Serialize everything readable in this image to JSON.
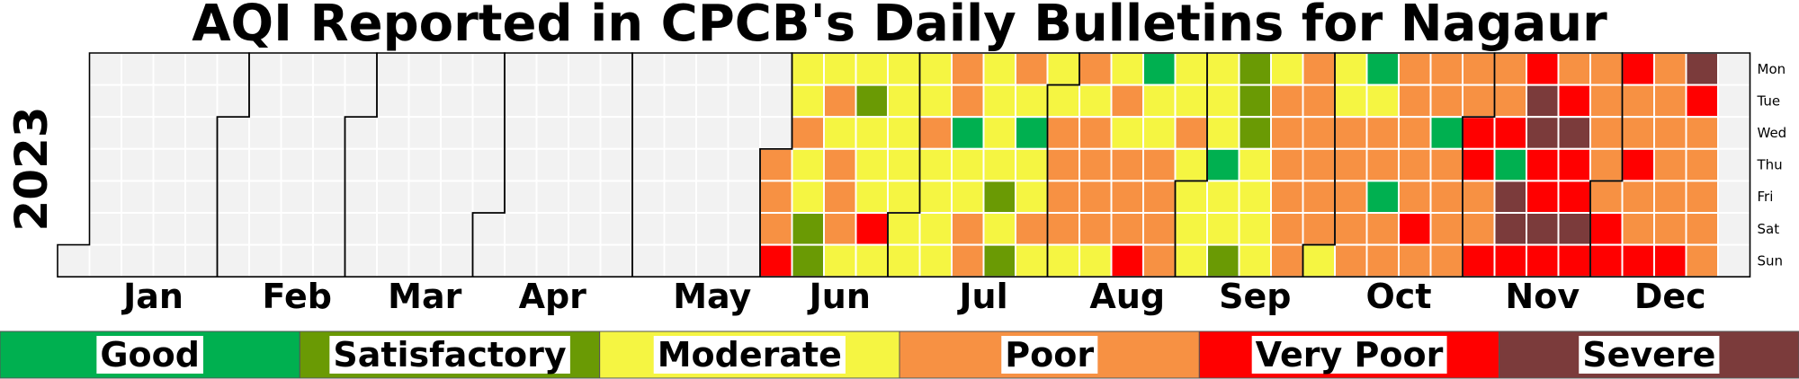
{
  "chart_data": {
    "type": "heatmap",
    "title": "AQI Reported in CPCB's Daily Bulletins for Nagaur",
    "year": "2023",
    "months": [
      "Jan",
      "Feb",
      "Mar",
      "Apr",
      "May",
      "Jun",
      "Jul",
      "Aug",
      "Sep",
      "Oct",
      "Nov",
      "Dec"
    ],
    "weekdays": [
      "Mon",
      "Tue",
      "Wed",
      "Thu",
      "Fri",
      "Sat",
      "Sun"
    ],
    "colors": {
      "none": "#f2f2f2",
      "Good": "#00b050",
      "Satisfactory": "#6a9a04",
      "Moderate": "#f5f542",
      "Poor": "#f79143",
      "Very Poor": "#ff0000",
      "Severe": "#7b3b3b"
    },
    "categories": [
      "Good",
      "Satisfactory",
      "Moderate",
      "Poor",
      "Very Poor",
      "Severe"
    ],
    "category_codes": {
      "0": "no data",
      "1": "Good",
      "2": "Satisfactory",
      "3": "Moderate",
      "4": "Poor",
      "5": "Very Poor",
      "6": "Severe"
    },
    "weeks": [
      [
        0,
        0,
        0,
        0,
        0,
        0,
        0
      ],
      [
        0,
        0,
        0,
        0,
        0,
        0,
        0
      ],
      [
        0,
        0,
        0,
        0,
        0,
        0,
        0
      ],
      [
        0,
        0,
        0,
        0,
        0,
        0,
        0
      ],
      [
        0,
        0,
        0,
        0,
        0,
        0,
        0
      ],
      [
        0,
        0,
        0,
        0,
        0,
        0,
        0
      ],
      [
        0,
        0,
        0,
        0,
        0,
        0,
        0
      ],
      [
        0,
        0,
        0,
        0,
        0,
        0,
        0
      ],
      [
        0,
        0,
        0,
        0,
        0,
        0,
        0
      ],
      [
        0,
        0,
        0,
        0,
        0,
        0,
        0
      ],
      [
        0,
        0,
        0,
        0,
        0,
        0,
        0
      ],
      [
        0,
        0,
        0,
        0,
        0,
        0,
        0
      ],
      [
        0,
        0,
        0,
        0,
        0,
        0,
        0
      ],
      [
        0,
        0,
        0,
        0,
        0,
        0,
        0
      ],
      [
        0,
        0,
        0,
        0,
        0,
        0,
        0
      ],
      [
        0,
        0,
        0,
        0,
        0,
        0,
        0
      ],
      [
        0,
        0,
        0,
        0,
        0,
        0,
        0
      ],
      [
        0,
        0,
        0,
        0,
        0,
        0,
        0
      ],
      [
        0,
        0,
        0,
        0,
        0,
        0,
        0
      ],
      [
        0,
        0,
        0,
        0,
        0,
        0,
        0
      ],
      [
        0,
        0,
        0,
        0,
        0,
        0,
        0
      ],
      [
        0,
        0,
        0,
        0,
        0,
        0,
        0
      ],
      [
        0,
        0,
        0,
        4,
        4,
        4,
        5
      ],
      [
        3,
        3,
        4,
        3,
        3,
        2,
        2
      ],
      [
        3,
        4,
        3,
        4,
        4,
        4,
        3
      ],
      [
        3,
        2,
        3,
        3,
        3,
        5,
        3
      ],
      [
        3,
        3,
        3,
        3,
        3,
        3,
        3
      ],
      [
        3,
        3,
        4,
        3,
        3,
        3,
        3
      ],
      [
        4,
        4,
        1,
        3,
        3,
        4,
        4
      ],
      [
        3,
        3,
        3,
        3,
        2,
        3,
        2
      ],
      [
        4,
        3,
        1,
        3,
        3,
        4,
        3
      ],
      [
        3,
        3,
        4,
        4,
        4,
        4,
        3
      ],
      [
        4,
        3,
        4,
        4,
        4,
        4,
        3
      ],
      [
        3,
        4,
        3,
        4,
        4,
        4,
        5
      ],
      [
        1,
        3,
        3,
        4,
        4,
        4,
        4
      ],
      [
        3,
        3,
        4,
        3,
        3,
        3,
        3
      ],
      [
        3,
        3,
        3,
        1,
        3,
        3,
        2
      ],
      [
        2,
        2,
        2,
        3,
        3,
        3,
        3
      ],
      [
        3,
        4,
        4,
        4,
        4,
        4,
        4
      ],
      [
        4,
        4,
        4,
        4,
        4,
        4,
        3
      ],
      [
        3,
        3,
        4,
        4,
        4,
        4,
        4
      ],
      [
        1,
        3,
        4,
        4,
        1,
        4,
        4
      ],
      [
        4,
        4,
        4,
        4,
        4,
        5,
        4
      ],
      [
        4,
        4,
        1,
        4,
        4,
        4,
        4
      ],
      [
        4,
        4,
        5,
        5,
        4,
        4,
        5
      ],
      [
        4,
        4,
        5,
        1,
        6,
        6,
        5
      ],
      [
        5,
        6,
        6,
        5,
        5,
        6,
        5
      ],
      [
        4,
        5,
        6,
        5,
        5,
        6,
        5
      ],
      [
        4,
        4,
        4,
        4,
        4,
        5,
        5
      ],
      [
        5,
        4,
        4,
        5,
        4,
        4,
        5
      ],
      [
        4,
        4,
        4,
        4,
        4,
        4,
        5
      ],
      [
        6,
        5,
        4,
        4,
        4,
        4,
        4
      ]
    ]
  }
}
